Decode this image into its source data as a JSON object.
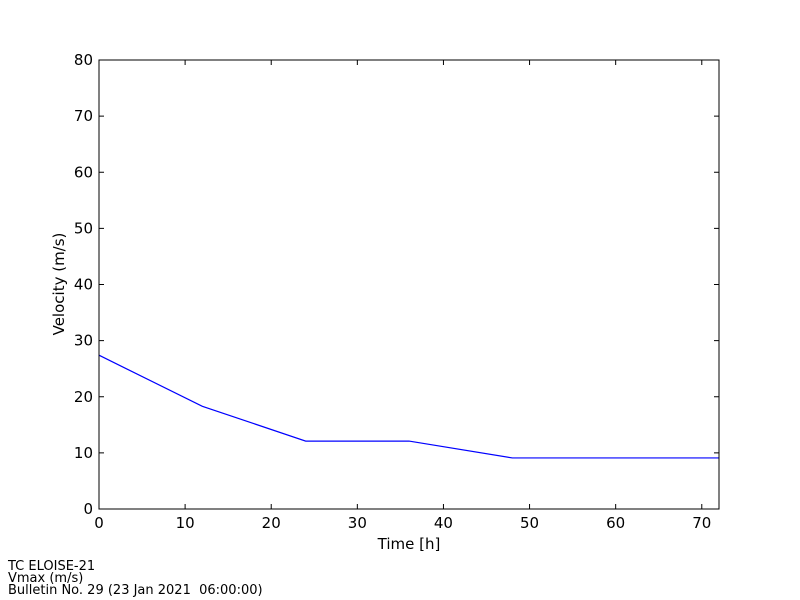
{
  "chart_data": {
    "type": "line",
    "xlabel": "Time [h]",
    "ylabel": "Velocity (m/s)",
    "x": [
      0,
      12,
      24,
      36,
      48,
      60,
      72
    ],
    "series": [
      {
        "name": "Vmax (m/s)",
        "color": "#0000ff",
        "values": [
          27.4,
          18.3,
          12.1,
          12.1,
          9.1,
          9.1,
          9.1
        ]
      }
    ],
    "xlim": [
      0,
      72
    ],
    "xticks": [
      0,
      10,
      20,
      30,
      40,
      50,
      60,
      70
    ],
    "ylim": [
      0,
      80
    ],
    "yticks": [
      0,
      10,
      20,
      30,
      40,
      50,
      60,
      70,
      80
    ],
    "grid": false,
    "annotations": [
      "TC ELOISE-21",
      "Vmax (m/s)",
      "Bulletin No. 29 (23 Jan 2021  06:00:00)"
    ]
  }
}
